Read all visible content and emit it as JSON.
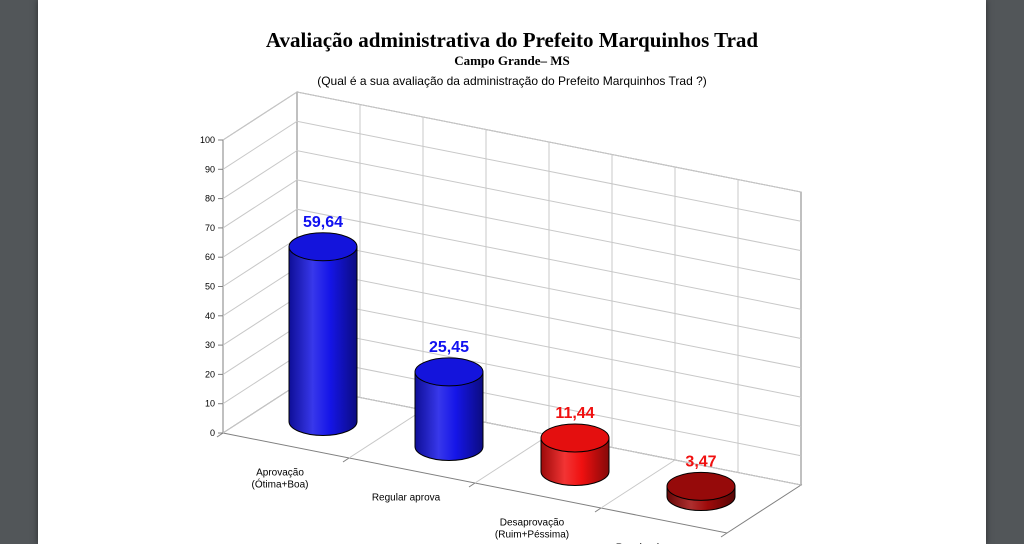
{
  "header": {
    "title": "Avaliação administrativa do Prefeito Marquinhos Trad",
    "subtitle": "Campo Grande– MS",
    "question": "(Qual é a sua avaliação da administração do Prefeito Marquinhos Trad ?)"
  },
  "chart_data": {
    "type": "bar",
    "style": "3d-cylinder",
    "categories": [
      [
        "Aprovação",
        "(Ótima+Boa)"
      ],
      [
        "Regular aprova"
      ],
      [
        "Desaprovação",
        "(Ruim+Péssima)"
      ],
      [
        "Regular desaprova"
      ]
    ],
    "values": [
      59.64,
      25.45,
      11.44,
      3.47
    ],
    "value_labels": [
      "59,64",
      "25,45",
      "11,44",
      "3,47"
    ],
    "bar_colors": [
      "#1515e8",
      "#1515e8",
      "#f01010",
      "#9e0a0a"
    ],
    "label_colors": [
      "#1010f0",
      "#1010f0",
      "#f01010",
      "#f01010"
    ],
    "ylim": [
      0,
      100
    ],
    "yticks": [
      0,
      10,
      20,
      30,
      40,
      50,
      60,
      70,
      80,
      90,
      100
    ],
    "grid": true,
    "xlabel": "",
    "ylabel": ""
  }
}
